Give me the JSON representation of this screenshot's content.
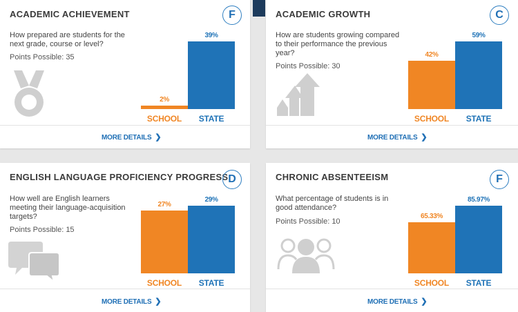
{
  "colors": {
    "school": "#f08624",
    "state": "#1f73b7",
    "link": "#1f6fb5",
    "accent": "#1d3b5c"
  },
  "more_details_label": "MORE DETAILS",
  "cards": [
    {
      "title": "ACADEMIC ACHIEVEMENT",
      "grade": "F",
      "question": "How prepared are students for the next grade, course or level?",
      "points": "Points Possible: 35",
      "icon": "medal-icon"
    },
    {
      "title": "ACADEMIC GROWTH",
      "grade": "C",
      "question": "How are students growing compared to their performance the previous year?",
      "points": "Points Possible: 30",
      "icon": "growth-arrows-icon"
    },
    {
      "title": "ENGLISH LANGUAGE PROFICIENCY PROGRESS",
      "grade": "D",
      "question": "How well are English learners meeting their language-acquisition targets?",
      "points": "Points Possible: 15",
      "icon": "speech-bubbles-icon"
    },
    {
      "title": "CHRONIC ABSENTEEISM",
      "grade": "F",
      "question": "What percentage of students is in good attendance?",
      "points": "Points Possible: 10",
      "icon": "people-icon"
    }
  ],
  "chart_data": [
    {
      "type": "bar",
      "categories": [
        "SCHOOL",
        "STATE"
      ],
      "values": [
        2,
        39
      ],
      "labels": [
        "2%",
        "39%"
      ],
      "ylim": [
        0,
        39
      ]
    },
    {
      "type": "bar",
      "categories": [
        "SCHOOL",
        "STATE"
      ],
      "values": [
        42,
        59
      ],
      "labels": [
        "42%",
        "59%"
      ],
      "ylim": [
        0,
        59
      ]
    },
    {
      "type": "bar",
      "categories": [
        "SCHOOL",
        "STATE"
      ],
      "values": [
        27,
        29
      ],
      "labels": [
        "27%",
        "29%"
      ],
      "ylim": [
        0,
        29
      ]
    },
    {
      "type": "bar",
      "categories": [
        "SCHOOL",
        "STATE"
      ],
      "values": [
        65.33,
        85.97
      ],
      "labels": [
        "65.33%",
        "85.97%"
      ],
      "ylim": [
        0,
        85.97
      ]
    }
  ]
}
